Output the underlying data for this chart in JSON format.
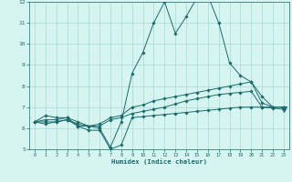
{
  "xlabel": "Humidex (Indice chaleur)",
  "x": [
    0,
    1,
    2,
    3,
    4,
    5,
    6,
    7,
    8,
    9,
    10,
    11,
    12,
    13,
    14,
    15,
    16,
    17,
    18,
    19,
    20,
    21,
    22,
    23
  ],
  "line_max": [
    6.3,
    6.6,
    6.5,
    6.5,
    6.1,
    6.1,
    6.0,
    5.1,
    6.3,
    8.6,
    9.6,
    11.0,
    12.0,
    10.5,
    11.3,
    12.2,
    12.3,
    11.0,
    9.1,
    8.5,
    8.2,
    7.5,
    7.0,
    7.0
  ],
  "line_avg1": [
    6.3,
    6.4,
    6.4,
    6.5,
    6.3,
    6.1,
    6.2,
    6.5,
    6.6,
    7.0,
    7.1,
    7.3,
    7.4,
    7.5,
    7.6,
    7.7,
    7.8,
    7.9,
    8.0,
    8.1,
    8.2,
    7.2,
    7.0,
    7.0
  ],
  "line_avg2": [
    6.3,
    6.3,
    6.3,
    6.4,
    6.2,
    6.1,
    6.1,
    6.4,
    6.5,
    6.7,
    6.8,
    6.9,
    7.0,
    7.15,
    7.3,
    7.4,
    7.5,
    7.6,
    7.65,
    7.7,
    7.75,
    7.0,
    7.0,
    7.0
  ],
  "line_min": [
    6.3,
    6.2,
    6.3,
    6.4,
    6.1,
    5.9,
    5.9,
    5.0,
    5.2,
    6.5,
    6.55,
    6.6,
    6.65,
    6.7,
    6.75,
    6.8,
    6.85,
    6.9,
    6.95,
    7.0,
    7.0,
    7.0,
    6.95,
    6.9
  ],
  "ylim": [
    5,
    12
  ],
  "xlim_min": -0.5,
  "xlim_max": 23.5,
  "yticks": [
    5,
    6,
    7,
    8,
    9,
    10,
    11,
    12
  ],
  "xticks": [
    0,
    1,
    2,
    3,
    4,
    5,
    6,
    7,
    8,
    9,
    10,
    11,
    12,
    13,
    14,
    15,
    16,
    17,
    18,
    19,
    20,
    21,
    22,
    23
  ],
  "line_color": "#1a6b6b",
  "bg_color": "#d6f5f0",
  "grid_color": "#a8d8d4"
}
